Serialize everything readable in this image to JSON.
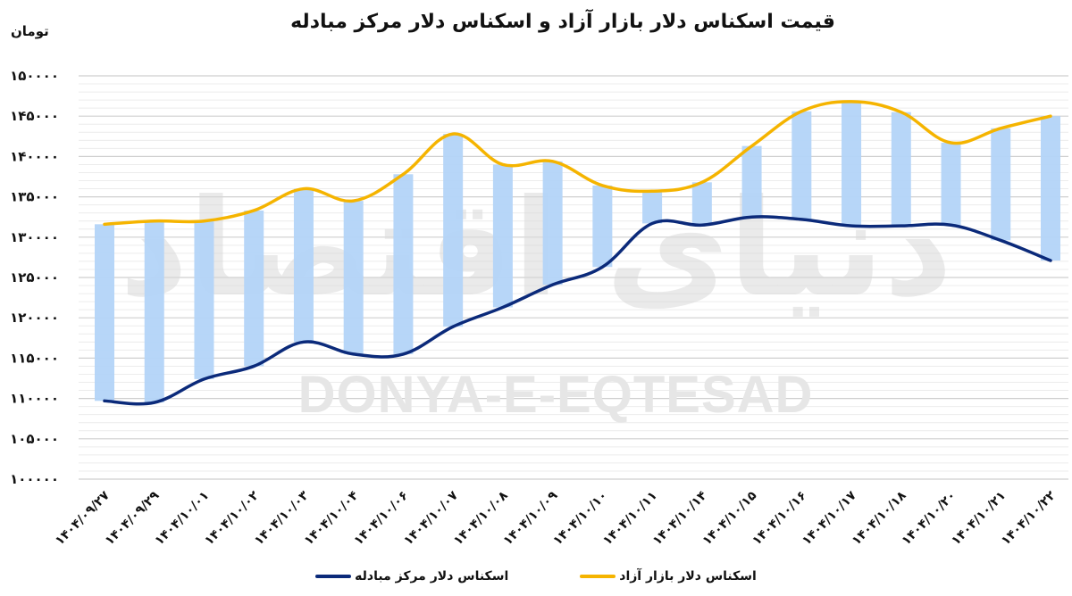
{
  "header": {
    "title": "قیمت اسکناس دلار بازار آزاد و اسکناس دلار مرکز مبادله",
    "unit": "تومان"
  },
  "watermark": {
    "text_en": "DONYA-E-EQTESAD",
    "text_fa": "دنیای اقتصاد"
  },
  "legend": {
    "items": [
      {
        "label": "اسکناس دلار بازار آزاد",
        "color": "#F5B400"
      },
      {
        "label": "اسکناس دلار مرکز مبادله",
        "color": "#0B2A7A"
      }
    ]
  },
  "colors": {
    "free_market": "#F5B400",
    "exchange_center": "#0B2A7A",
    "spread_bar": "#B3D4F8",
    "grid_major": "#cfcfcf",
    "grid_minor": "#ececec"
  },
  "chart_data": {
    "type": "line",
    "title": "قیمت اسکناس دلار بازار آزاد و اسکناس دلار مرکز مبادله",
    "xlabel": "",
    "ylabel": "تومان",
    "ylim": [
      100000,
      150000
    ],
    "ytick_step": 5000,
    "yticks": [
      "۱۰۰۰۰۰",
      "۱۰۵۰۰۰",
      "۱۱۰۰۰۰",
      "۱۱۵۰۰۰",
      "۱۲۰۰۰۰",
      "۱۲۵۰۰۰",
      "۱۳۰۰۰۰",
      "۱۳۵۰۰۰",
      "۱۴۰۰۰۰",
      "۱۴۵۰۰۰",
      "۱۵۰۰۰۰"
    ],
    "grid": true,
    "legend_position": "bottom",
    "categories": [
      "۱۴۰۴/۰۹/۲۷",
      "۱۴۰۴/۰۹/۲۹",
      "۱۴۰۴/۱۰/۰۱",
      "۱۴۰۴/۱۰/۰۲",
      "۱۴۰۴/۱۰/۰۳",
      "۱۴۰۴/۱۰/۰۴",
      "۱۴۰۴/۱۰/۰۶",
      "۱۴۰۴/۱۰/۰۷",
      "۱۴۰۴/۱۰/۰۸",
      "۱۴۰۴/۱۰/۰۹",
      "۱۴۰۴/۱۰/۱۰",
      "۱۴۰۴/۱۰/۱۱",
      "۱۴۰۴/۱۰/۱۴",
      "۱۴۰۴/۱۰/۱۵",
      "۱۴۰۴/۱۰/۱۶",
      "۱۴۰۴/۱۰/۱۷",
      "۱۴۰۴/۱۰/۱۸",
      "۱۴۰۴/۱۰/۲۰",
      "۱۴۰۴/۱۰/۲۱",
      "۱۴۰۴/۱۰/۲۲"
    ],
    "series": [
      {
        "name": "اسکناس دلار بازار آزاد",
        "color": "#F5B400",
        "values": [
          131600,
          132000,
          132000,
          133300,
          136000,
          134500,
          137800,
          142800,
          139000,
          139400,
          136400,
          135700,
          136800,
          141300,
          145600,
          146800,
          145500,
          141700,
          143500,
          145000
        ]
      },
      {
        "name": "اسکناس دلار مرکز مبادله",
        "color": "#0B2A7A",
        "values": [
          109700,
          109500,
          112400,
          114000,
          117000,
          115500,
          115500,
          118900,
          121300,
          124100,
          126300,
          131700,
          131500,
          132500,
          132200,
          131400,
          131400,
          131500,
          129600,
          127100
        ]
      }
    ],
    "spread_bars": {
      "description": "floating bars spanning between the two series at each date",
      "color": "#B3D4F8"
    }
  }
}
